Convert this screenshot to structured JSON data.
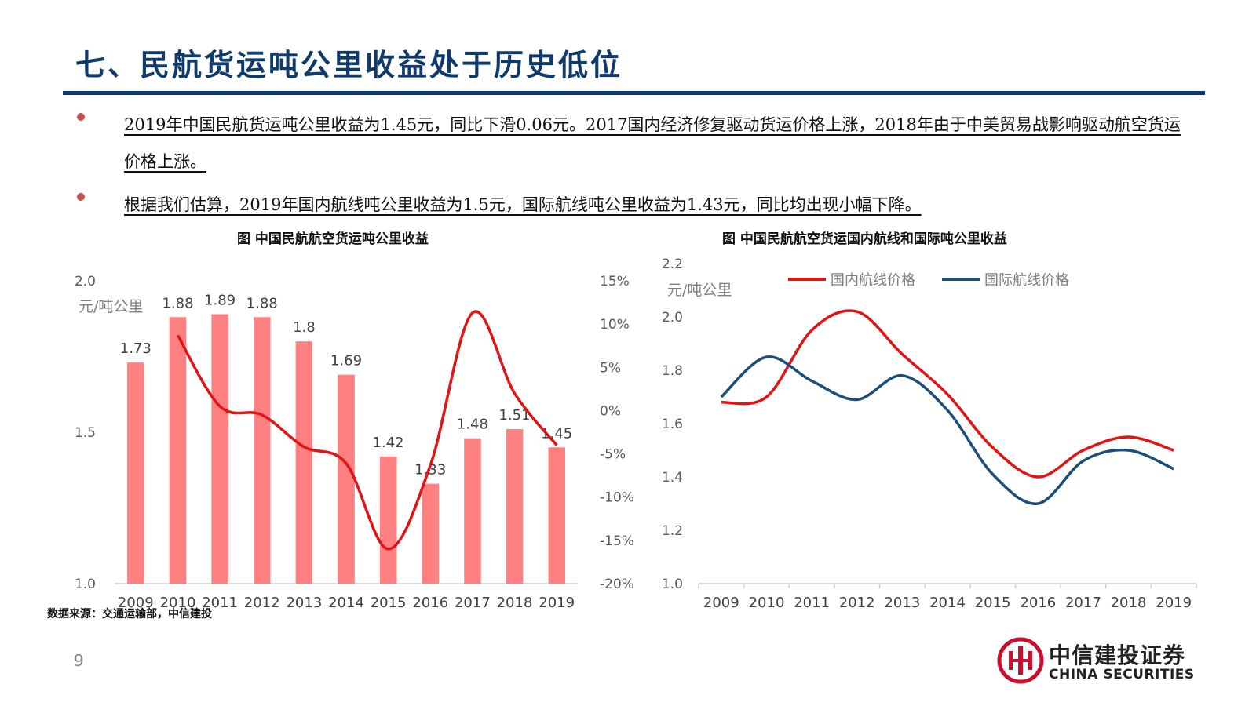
{
  "title": "七、民航货运吨公里收益处于历史低位",
  "bullets": [
    "2019年中国民航货运吨公里收益为1.45元，同比下滑0.06元。2017国内经济修复驱动货运价格上涨，2018年由于中美贸易战影响驱动航空货运价格上涨。",
    "根据我们估算，2019年国内航线吨公里收益为1.5元，国际航线吨公里收益为1.43元，同比均出现小幅下降。"
  ],
  "colors": {
    "title": "#0f3a6b",
    "bar": "#ff8080",
    "growth_line": "#e01414",
    "domestic": "#e01414",
    "international": "#1d4e79",
    "bullet_dot": "#c0504d"
  },
  "source": "数据来源：交通运输部，中信建投",
  "page_number": "9",
  "logo": {
    "cn": "中信建投证券",
    "en": "CHINA SECURITIES",
    "icon": "china-securities-logo-icon"
  },
  "chart_data": [
    {
      "type": "bar",
      "title": "图  中国民航航空货运吨公里收益",
      "unit_label": "元/吨公里",
      "categories": [
        "2009",
        "2010",
        "2011",
        "2012",
        "2013",
        "2014",
        "2015",
        "2016",
        "2017",
        "2018",
        "2019"
      ],
      "values": [
        1.73,
        1.88,
        1.89,
        1.88,
        1.8,
        1.69,
        1.42,
        1.33,
        1.48,
        1.51,
        1.45
      ],
      "value_labels": [
        "1.73",
        "1.88",
        "1.89",
        "1.88",
        "1.8",
        "1.69",
        "1.42",
        "1.33",
        "1.48",
        "1.51",
        "1.45"
      ],
      "ylim": [
        1.0,
        2.0
      ],
      "yticks": [
        1.0,
        1.5,
        2.0
      ],
      "ytick_labels": [
        "1.0",
        "1.5",
        "2.0"
      ],
      "secondary_series": {
        "type": "line",
        "x": [
          "2010",
          "2011",
          "2012",
          "2013",
          "2014",
          "2015",
          "2016",
          "2017",
          "2018",
          "2019"
        ],
        "values": [
          8.7,
          0.5,
          -0.5,
          -4.2,
          -6.1,
          -16.0,
          -6.3,
          11.3,
          2.0,
          -4.0
        ]
      },
      "y2lim": [
        -20,
        15
      ],
      "y2ticks": [
        -20,
        -15,
        -10,
        -5,
        0,
        5,
        10,
        15
      ],
      "y2tick_labels": [
        "-20%",
        "-15%",
        "-10%",
        "-5%",
        "0%",
        "5%",
        "10%",
        "15%"
      ],
      "legend": "none",
      "grid": false
    },
    {
      "type": "line",
      "title": "图  中国民航航空货运国内航线和国际吨公里收益",
      "unit_label": "元/吨公里",
      "x": [
        "2009",
        "2010",
        "2011",
        "2012",
        "2013",
        "2014",
        "2015",
        "2016",
        "2017",
        "2018",
        "2019"
      ],
      "series": [
        {
          "name": "国内航线价格",
          "values": [
            1.68,
            1.7,
            1.95,
            2.02,
            1.86,
            1.71,
            1.51,
            1.4,
            1.5,
            1.55,
            1.5
          ]
        },
        {
          "name": "国际航线价格",
          "values": [
            1.7,
            1.85,
            1.76,
            1.69,
            1.78,
            1.65,
            1.41,
            1.3,
            1.46,
            1.5,
            1.43
          ]
        }
      ],
      "ylim": [
        1.0,
        2.2
      ],
      "yticks": [
        1.0,
        1.2,
        1.4,
        1.6,
        1.8,
        2.0,
        2.2
      ],
      "ytick_labels": [
        "1.0",
        "1.2",
        "1.4",
        "1.6",
        "1.8",
        "2.0",
        "2.2"
      ],
      "legend": "top",
      "grid": false
    }
  ]
}
